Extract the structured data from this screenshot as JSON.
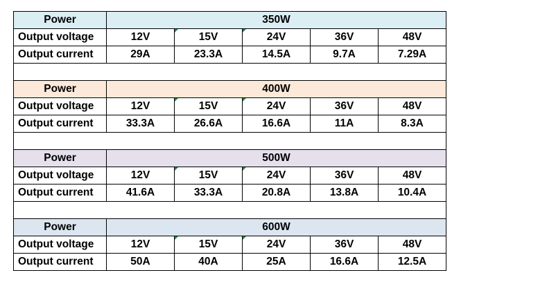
{
  "colors": {
    "power_350w_fill": "#dbeef4",
    "power_400w_fill": "#fde9d9",
    "power_500w_fill": "#e5e0ec",
    "power_600w_fill": "#dce6f1",
    "error_flag": "#1e8a3c",
    "border": "#000000"
  },
  "table": {
    "sections": [
      {
        "power_label": "Power",
        "power_value": "350W",
        "voltage_label": "Output voltage",
        "current_label": "Output current",
        "voltages": [
          "12V",
          "15V",
          "24V",
          "36V",
          "48V"
        ],
        "currents": [
          "29A",
          "23.3A",
          "14.5A",
          "9.7A",
          "7.29A"
        ]
      },
      {
        "power_label": "Power",
        "power_value": "400W",
        "voltage_label": "Output voltage",
        "current_label": "Output current",
        "voltages": [
          "12V",
          "15V",
          "24V",
          "36V",
          "48V"
        ],
        "currents": [
          "33.3A",
          "26.6A",
          "16.6A",
          "11A",
          "8.3A"
        ]
      },
      {
        "power_label": "Power",
        "power_value": "500W",
        "voltage_label": "Output voltage",
        "current_label": "Output current",
        "voltages": [
          "12V",
          "15V",
          "24V",
          "36V",
          "48V"
        ],
        "currents": [
          "41.6A",
          "33.3A",
          "20.8A",
          "13.8A",
          "10.4A"
        ]
      },
      {
        "power_label": "Power",
        "power_value": "600W",
        "voltage_label": "Output voltage",
        "current_label": "Output current",
        "voltages": [
          "12V",
          "15V",
          "24V",
          "36V",
          "48V"
        ],
        "currents": [
          "50A",
          "40A",
          "25A",
          "16.6A",
          "12.5A"
        ]
      }
    ]
  }
}
